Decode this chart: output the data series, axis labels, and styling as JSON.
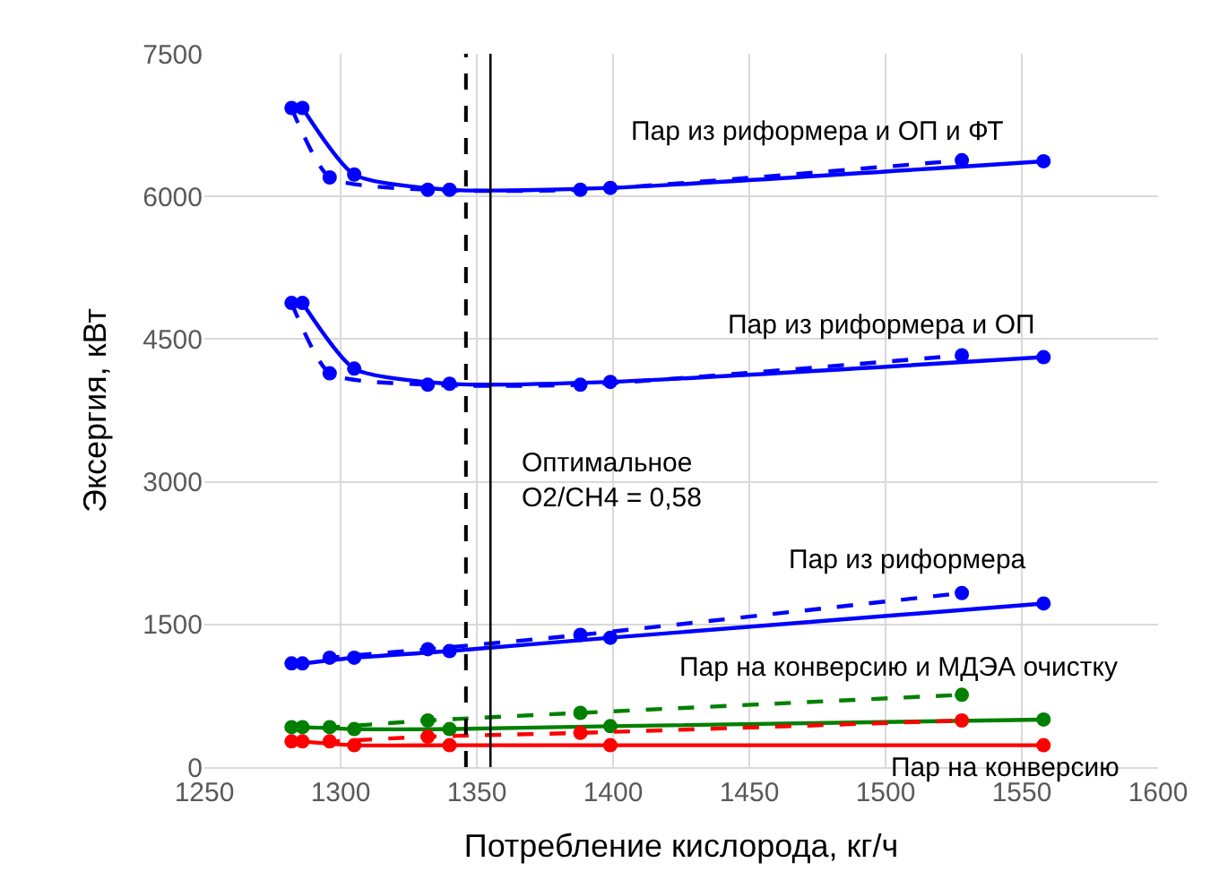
{
  "chart_data": {
    "type": "line",
    "xlabel": "Потребление кислорода, кг/ч",
    "ylabel": "Эксергия, кВт",
    "xlim": [
      1250,
      1600
    ],
    "xticks": [
      1250,
      1300,
      1350,
      1400,
      1450,
      1500,
      1550,
      1600
    ],
    "ylim": [
      0,
      7500
    ],
    "yticks": [
      0,
      1500,
      3000,
      4500,
      6000,
      7500
    ],
    "grid": true,
    "marker": "circle",
    "series": [
      {
        "color": "#0000ff",
        "line_style": "solid",
        "x": [
          1286,
          1305,
          1340,
          1399,
          1558
        ],
        "values": [
          6930,
          6230,
          6070,
          6090,
          6370
        ]
      },
      {
        "color": "#0000ff",
        "line_style": "dashed",
        "x": [
          1282,
          1296,
          1332,
          1388,
          1528
        ],
        "values": [
          6930,
          6200,
          6070,
          6070,
          6380
        ]
      },
      {
        "color": "#0000ff",
        "line_style": "solid",
        "x": [
          1286,
          1305,
          1340,
          1399,
          1558
        ],
        "values": [
          4880,
          4190,
          4030,
          4050,
          4310
        ]
      },
      {
        "color": "#0000ff",
        "line_style": "dashed",
        "x": [
          1282,
          1296,
          1332,
          1388,
          1528
        ],
        "values": [
          4880,
          4140,
          4020,
          4020,
          4330
        ]
      },
      {
        "color": "#0000ff",
        "line_style": "solid",
        "x": [
          1286,
          1305,
          1340,
          1399,
          1558
        ],
        "values": [
          1090,
          1150,
          1220,
          1360,
          1720
        ]
      },
      {
        "color": "#0000ff",
        "line_style": "dashed",
        "x": [
          1282,
          1296,
          1332,
          1388,
          1528
        ],
        "values": [
          1090,
          1150,
          1240,
          1390,
          1830
        ]
      },
      {
        "color": "#008000",
        "line_style": "solid",
        "x": [
          1286,
          1305,
          1340,
          1399,
          1558
        ],
        "values": [
          420,
          400,
          400,
          430,
          500
        ]
      },
      {
        "color": "#008000",
        "line_style": "dashed",
        "x": [
          1282,
          1296,
          1332,
          1388,
          1528
        ],
        "values": [
          420,
          420,
          490,
          570,
          760
        ]
      },
      {
        "color": "#ff0000",
        "line_style": "solid",
        "x": [
          1286,
          1305,
          1340,
          1399,
          1558
        ],
        "values": [
          270,
          230,
          230,
          230,
          230
        ]
      },
      {
        "color": "#ff0000",
        "line_style": "dashed",
        "x": [
          1282,
          1296,
          1332,
          1388,
          1528
        ],
        "values": [
          270,
          270,
          320,
          360,
          490
        ]
      }
    ],
    "ref_lines": [
      {
        "axis": "x",
        "value": 1346,
        "color": "#000000",
        "line_style": "dashed"
      },
      {
        "axis": "x",
        "value": 1355,
        "color": "#000000",
        "line_style": "solid"
      }
    ],
    "annotations": [
      "Пар из риформера и ОП и ФТ",
      "Пар из риформера и ОП",
      "Оптимальное\nO2/CH4 = 0,58",
      "Пар из риформера",
      "Пар на конверсию и МДЭА очистку",
      "Пар на конверсию"
    ]
  }
}
